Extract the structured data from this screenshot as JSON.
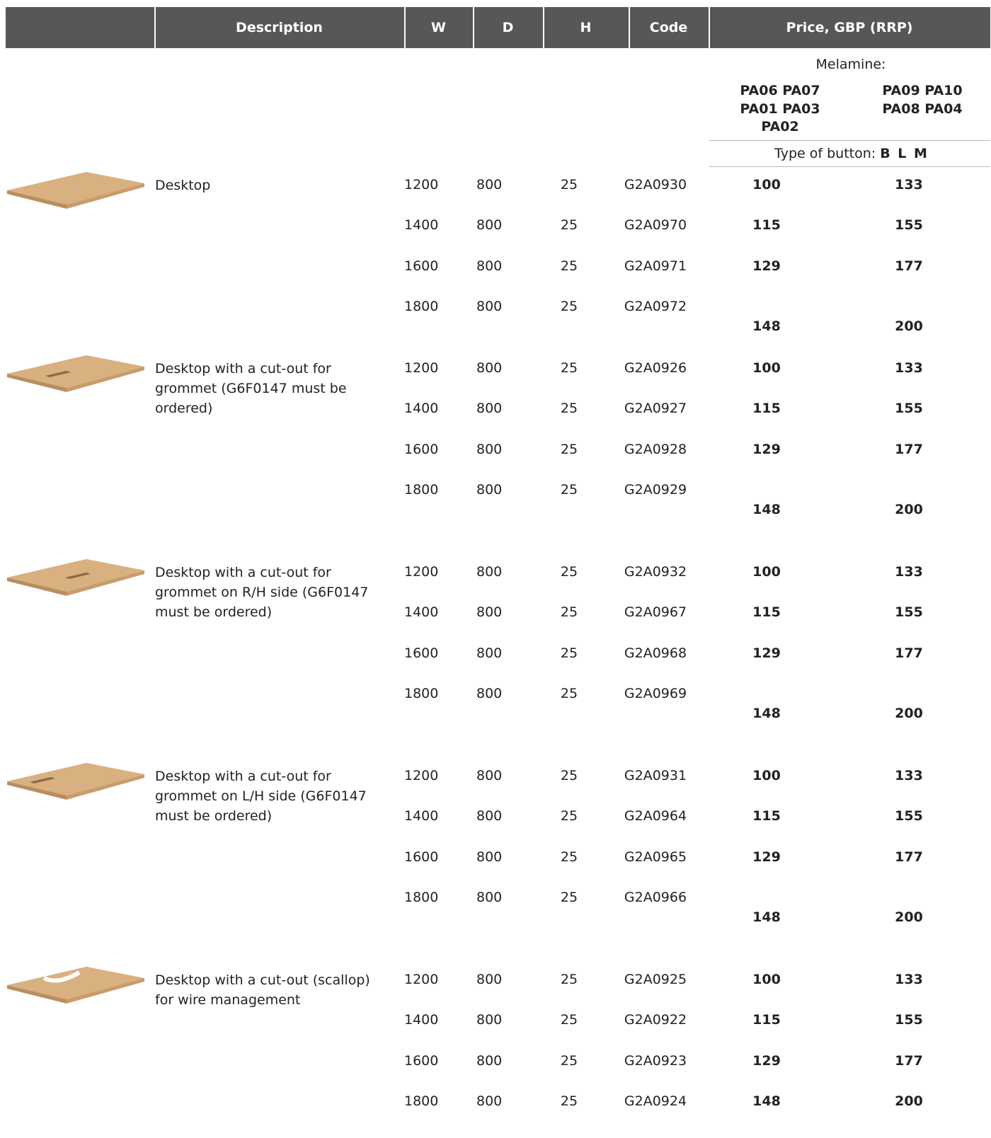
{
  "header": {
    "columns": [
      "Description",
      "W",
      "D",
      "H",
      "Code",
      "Price, GBP (RRP)"
    ]
  },
  "subheader": {
    "material": "Melamine:",
    "groups": [
      [
        "PA06 PA07",
        "PA01 PA03",
        "PA02"
      ],
      [
        "PA09 PA10",
        "PA08 PA04"
      ]
    ],
    "button_label": "Type of button:",
    "button_types": "B L M"
  },
  "products": [
    {
      "description": "Desktop",
      "rows": [
        [
          1200,
          800,
          25,
          "G2A0930",
          100,
          133
        ],
        [
          1400,
          800,
          25,
          "G2A0970",
          115,
          155
        ],
        [
          1600,
          800,
          25,
          "G2A0971",
          129,
          177
        ],
        [
          1800,
          800,
          25,
          "G2A0972",
          148,
          200
        ]
      ]
    },
    {
      "description": "Desktop with a cut-out for grommet (G6F0147 must be ordered)",
      "rows": [
        [
          1200,
          800,
          25,
          "G2A0926",
          100,
          133
        ],
        [
          1400,
          800,
          25,
          "G2A0927",
          115,
          155
        ],
        [
          1600,
          800,
          25,
          "G2A0928",
          129,
          177
        ],
        [
          1800,
          800,
          25,
          "G2A0929",
          148,
          200
        ]
      ]
    },
    {
      "description": "Desktop with a cut-out for grommet on R/H side (G6F0147 must be ordered)",
      "rows": [
        [
          1200,
          800,
          25,
          "G2A0932",
          100,
          133
        ],
        [
          1400,
          800,
          25,
          "G2A0967",
          115,
          155
        ],
        [
          1600,
          800,
          25,
          "G2A0968",
          129,
          177
        ],
        [
          1800,
          800,
          25,
          "G2A0969",
          148,
          200
        ]
      ]
    },
    {
      "description": "Desktop with a cut-out for grommet on L/H side (G6F0147 must be ordered)",
      "rows": [
        [
          1200,
          800,
          25,
          "G2A0931",
          100,
          133
        ],
        [
          1400,
          800,
          25,
          "G2A0964",
          115,
          155
        ],
        [
          1600,
          800,
          25,
          "G2A0965",
          129,
          177
        ],
        [
          1800,
          800,
          25,
          "G2A0966",
          148,
          200
        ]
      ]
    },
    {
      "description": "Desktop with a cut-out (scallop) for wire management",
      "rows": [
        [
          1200,
          800,
          25,
          "G2A0925",
          100,
          133
        ],
        [
          1400,
          800,
          25,
          "G2A0922",
          115,
          155
        ],
        [
          1600,
          800,
          25,
          "G2A0923",
          129,
          177
        ],
        [
          1800,
          800,
          25,
          "G2A0924",
          148,
          200
        ]
      ]
    }
  ]
}
